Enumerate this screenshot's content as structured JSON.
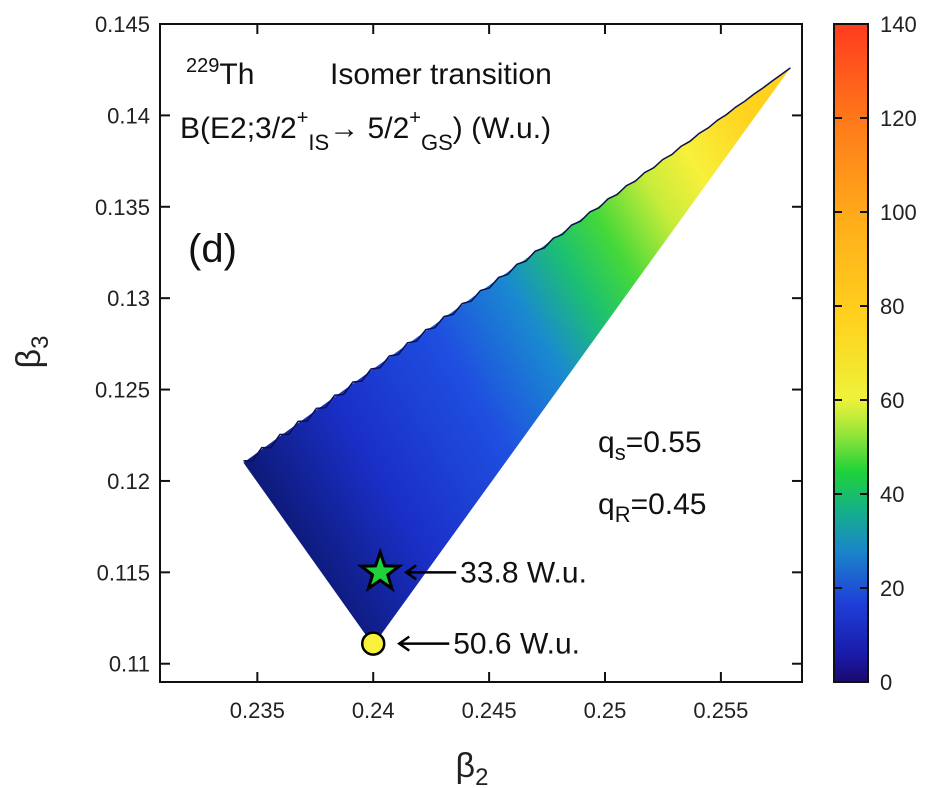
{
  "chart_data": {
    "type": "heatmap",
    "x_ticks": [
      "0.235",
      "0.24",
      "0.245",
      "0.25",
      "0.255"
    ],
    "y_ticks": [
      "0.11",
      "0.115",
      "0.12",
      "0.125",
      "0.13",
      "0.135",
      "0.14",
      "0.145"
    ],
    "xlim": [
      0.2308,
      0.2585
    ],
    "ylim": [
      0.109,
      0.145
    ],
    "x_tick_values": [
      0.235,
      0.24,
      0.245,
      0.25,
      0.255
    ],
    "y_tick_values": [
      0.11,
      0.115,
      0.12,
      0.125,
      0.13,
      0.135,
      0.14,
      0.145
    ],
    "colorbar": {
      "range": [
        0,
        140
      ],
      "ticks": [
        "0",
        "20",
        "40",
        "60",
        "80",
        "100",
        "120",
        "140"
      ],
      "tick_values": [
        0,
        20,
        40,
        60,
        80,
        100,
        120,
        140
      ],
      "colors": [
        "#1a0a6e",
        "#1f3fd8",
        "#1aa0c0",
        "#1fd23a",
        "#eef23a",
        "#ffd21e",
        "#ff9f1a",
        "#ff3b1f"
      ]
    },
    "region_vertices": [
      {
        "x": 0.2344,
        "y": 0.121
      },
      {
        "x": 0.258,
        "y": 0.1426
      },
      {
        "x": 0.24,
        "y": 0.111
      }
    ],
    "markers": [
      {
        "shape": "star",
        "x": 0.2403,
        "y": 0.115,
        "label": "33.8 W.u."
      },
      {
        "shape": "circle",
        "x": 0.24,
        "y": 0.1111,
        "label": "50.6 W.u."
      }
    ],
    "annotations": {
      "isotope_mass": "229",
      "isotope": "Th",
      "title_rest": "Isomer transition",
      "formula": {
        "prefix": "B(E2;3/2",
        "sup1": "+",
        "sub1": "IS",
        "arrow": "→",
        "mid": " 5/2",
        "sup2": "+",
        "sub2": "GS",
        "suffix": ") (W.u.)"
      },
      "panel": "(d)",
      "qs": {
        "base": "q",
        "sub": "s",
        "value": "=0.55"
      },
      "qr": {
        "base": "q",
        "sub": "R",
        "value": "=0.45"
      }
    },
    "xlabel": {
      "base": "β",
      "sub": "2"
    },
    "ylabel": {
      "base": "β",
      "sub": "3"
    }
  }
}
